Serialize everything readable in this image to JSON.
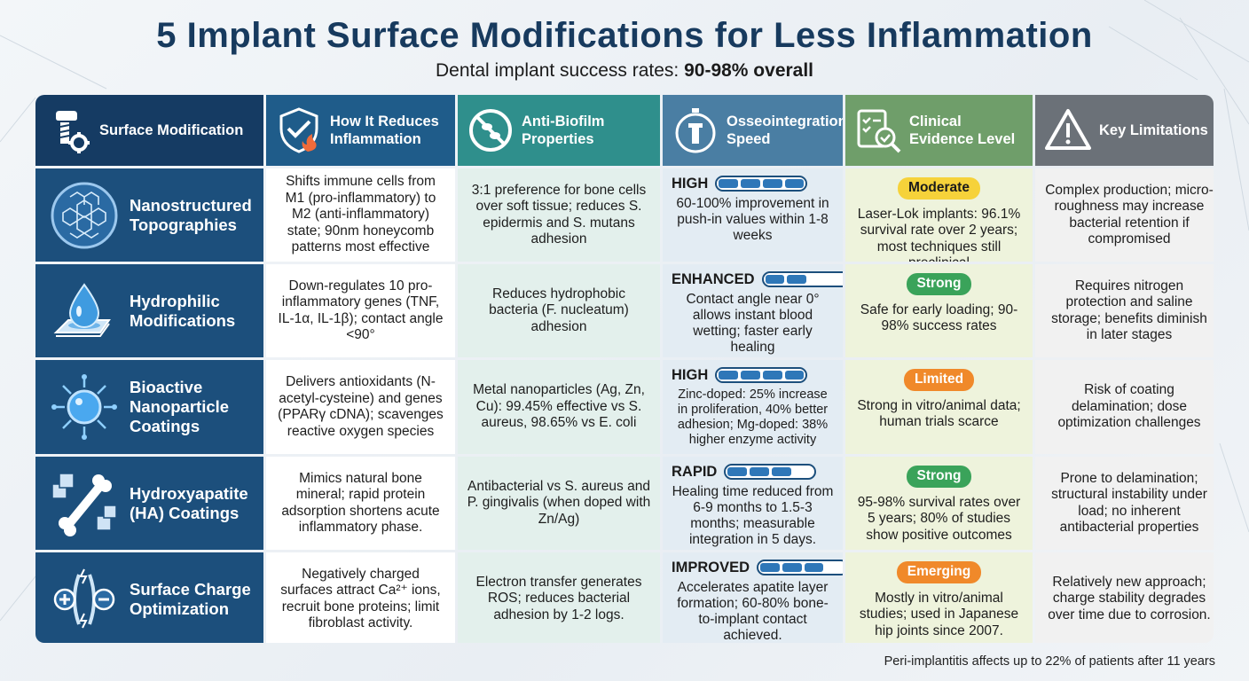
{
  "title": "5 Implant Surface Modifications for Less Inflammation",
  "subtitle_prefix": "Dental implant success rates: ",
  "subtitle_bold": "90-98% overall",
  "footnote": "Peri-implantitis affects up to 22% of patients after 11 years",
  "headers": [
    {
      "label": "Surface Modification",
      "icon": "implant-gear-icon"
    },
    {
      "label": "How It Reduces Inflammation",
      "icon": "shield-flame-icon"
    },
    {
      "label": "Anti-Biofilm Properties",
      "icon": "no-bacteria-icon"
    },
    {
      "label": "Osseointegration Speed",
      "icon": "stopwatch-implant-icon"
    },
    {
      "label": "Clinical Evidence Level",
      "icon": "checklist-magnifier-icon"
    },
    {
      "label": "Key Limitations",
      "icon": "warning-icon"
    }
  ],
  "rows": [
    {
      "name": "Nanostructured Topographies",
      "icon": "honeycomb-icon",
      "inflammation": "Shifts immune cells from M1 (pro-inflammatory) to M2 (anti-inflammatory) state; 90nm honeycomb patterns most effective",
      "biofilm": "3:1 preference for bone cells over soft tissue; reduces S. epidermis and S. mutans adhesion",
      "osseo_level": "HIGH",
      "osseo_bar": 4,
      "osseo_desc": "60-100% improvement in push-in values within 1-8 weeks",
      "evidence_badge": "Moderate",
      "evidence_color": "#f6d23a",
      "evidence_desc": "Laser-Lok implants: 96.1% survival rate over 2 years;",
      "evidence_desc2": "most techniques still preclinical",
      "limitation": "Complex production; micro-roughness may increase bacterial retention if compromised"
    },
    {
      "name": "Hydrophilic Modifications",
      "icon": "water-drop-icon",
      "inflammation": "Down-regulates 10 pro-inflammatory genes (TNF, IL-1α, IL-1β); contact angle <90°",
      "biofilm": "Reduces hydrophobic bacteria (F. nucleatum) adhesion",
      "osseo_level": "ENHANCED",
      "osseo_bar": 2,
      "osseo_desc": "Contact angle near 0° allows instant blood wetting; faster early healing",
      "evidence_badge": "Strong",
      "evidence_color": "#3aa35a",
      "evidence_desc": "Safe for early loading; 90-98% success rates",
      "evidence_desc2": "",
      "limitation": "Requires nitrogen protection and saline storage; benefits diminish in later stages"
    },
    {
      "name": "Bioactive Nanoparticle Coatings",
      "icon": "nanoparticle-icon",
      "inflammation": "Delivers antioxidants (N-acetyl-cysteine) and genes (PPARγ cDNA); scavenges reactive oxygen species",
      "biofilm": "Metal nanoparticles (Ag, Zn, Cu): 99.45% effective vs S. aureus, 98.65% vs E. coli",
      "osseo_level": "HIGH",
      "osseo_bar": 4,
      "osseo_desc": "Zinc-doped: 25% increase in proliferation, 40% better adhesion; Mg-doped: 38% higher enzyme activity",
      "evidence_badge": "Limited",
      "evidence_color": "#f0892a",
      "evidence_desc": "Strong in vitro/animal data; human trials scarce",
      "evidence_desc2": "",
      "limitation": "Risk of coating delamination; dose optimization challenges"
    },
    {
      "name": "Hydroxyapatite (HA) Coatings",
      "icon": "bone-cubes-icon",
      "inflammation": "Mimics natural bone mineral; rapid protein adsorption shortens acute inflammatory phase.",
      "biofilm": "Antibacterial vs S. aureus and P. gingivalis (when doped with Zn/Ag)",
      "osseo_level": "RAPID",
      "osseo_bar": 3,
      "osseo_desc": "Healing time reduced from 6-9 months to 1.5-3 months; measurable integration in 5 days.",
      "evidence_badge": "Strong",
      "evidence_color": "#3aa35a",
      "evidence_desc": "95-98% survival rates over 5 years; 80% of studies show positive outcomes",
      "evidence_desc2": "",
      "limitation": "Prone to delamination; structural instability under load; no inherent antibacterial properties"
    },
    {
      "name": "Surface Charge Optimization",
      "icon": "charge-icon",
      "inflammation": "Negatively charged surfaces attract Ca²⁺ ions, recruit bone proteins; limit fibroblast activity.",
      "biofilm": "Electron transfer generates ROS; reduces bacterial adhesion by 1-2 logs.",
      "osseo_level": "IMPROVED",
      "osseo_bar": 3,
      "osseo_desc": "Accelerates apatite layer formation; 60-80% bone-to-implant contact achieved.",
      "evidence_badge": "Emerging",
      "evidence_color": "#f0892a",
      "evidence_desc": "Mostly in vitro/animal studies; used in Japanese hip joints since 2007.",
      "evidence_desc2": "",
      "limitation": "Relatively new approach; charge stability degrades over time due to corrosion."
    }
  ]
}
